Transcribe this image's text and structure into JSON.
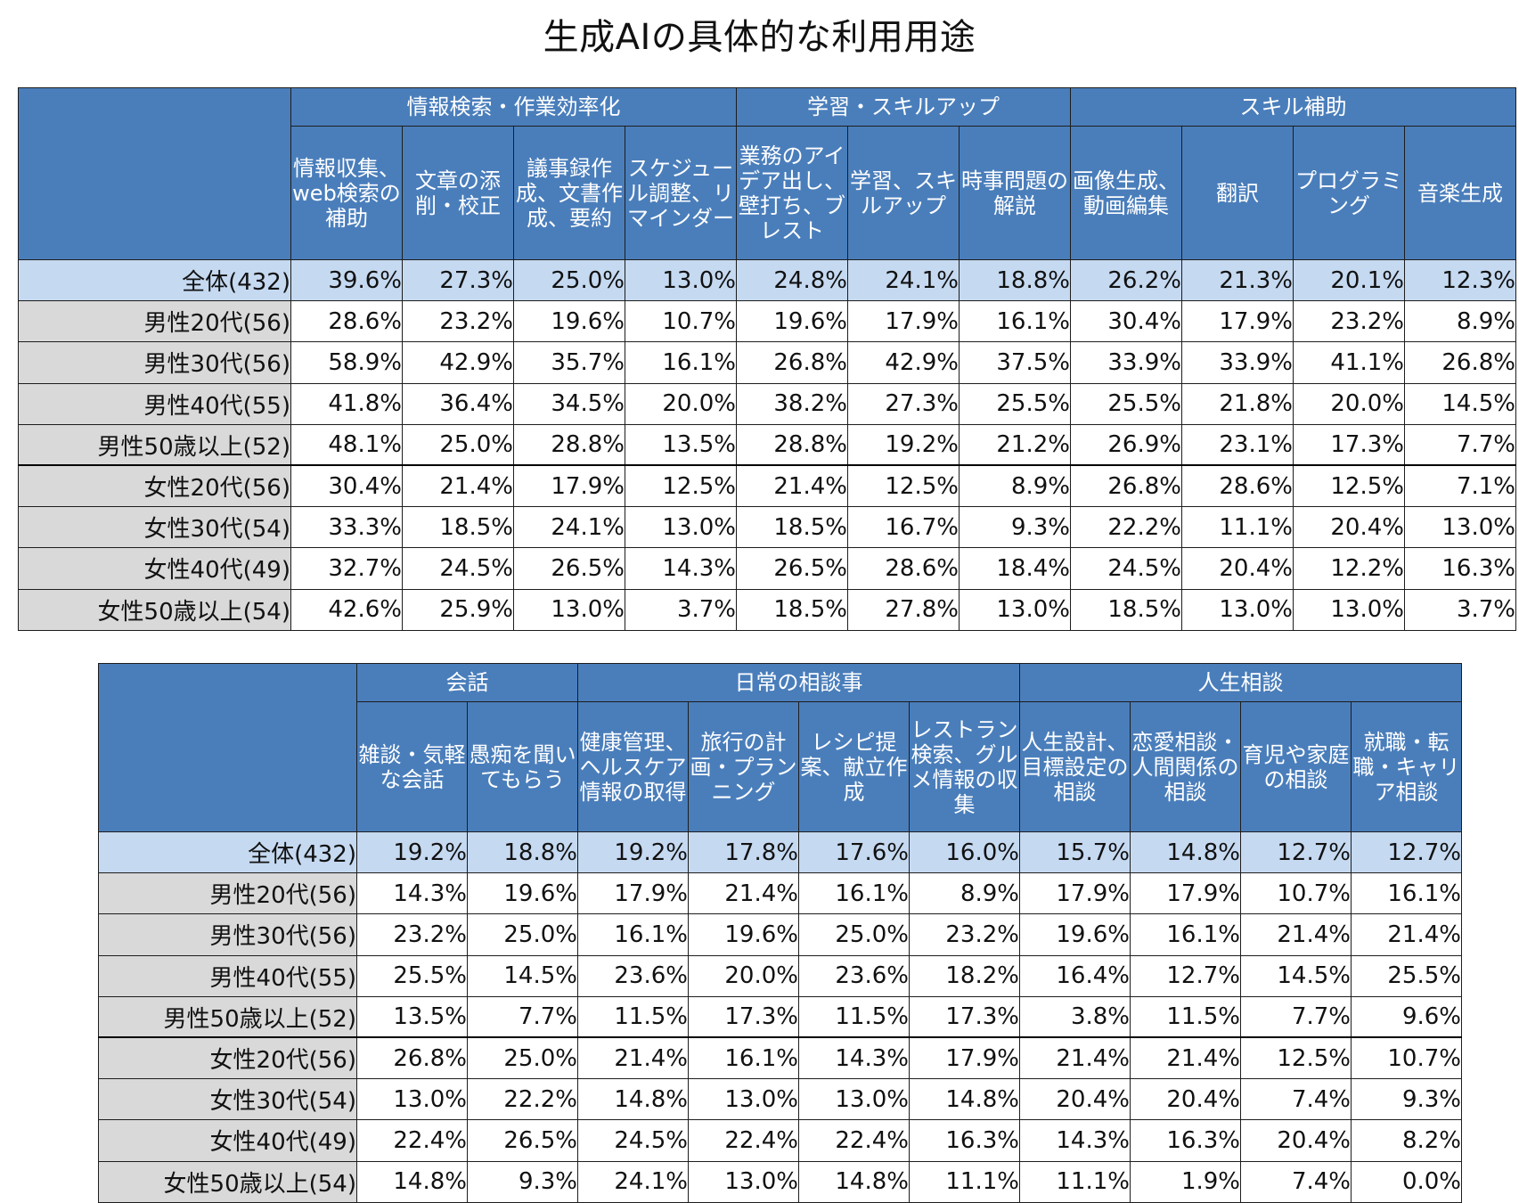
{
  "title": "生成AIの具体的な利用用途",
  "chart_data": [
    {
      "type": "table",
      "groups": [
        {
          "label": "情報検索・作業効率化",
          "span": 4
        },
        {
          "label": "学習・スキルアップ",
          "span": 3
        },
        {
          "label": "スキル補助",
          "span": 4
        }
      ],
      "columns": [
        "情報収集、web検索の補助",
        "文章の添削・校正",
        "議事録作成、文書作成、要約",
        "スケジュール調整、リマインダー",
        "業務のアイデア出し、壁打ち、ブレスト",
        "学習、スキルアップ",
        "時事問題の解説",
        "画像生成、動画編集",
        "翻訳",
        "プログラミング",
        "音楽生成"
      ],
      "rows": [
        {
          "label": "全体(432)",
          "values": [
            "39.6%",
            "27.3%",
            "25.0%",
            "13.0%",
            "24.8%",
            "24.1%",
            "18.8%",
            "26.2%",
            "21.3%",
            "20.1%",
            "12.3%"
          ]
        },
        {
          "label": "男性20代(56)",
          "values": [
            "28.6%",
            "23.2%",
            "19.6%",
            "10.7%",
            "19.6%",
            "17.9%",
            "16.1%",
            "30.4%",
            "17.9%",
            "23.2%",
            "8.9%"
          ]
        },
        {
          "label": "男性30代(56)",
          "values": [
            "58.9%",
            "42.9%",
            "35.7%",
            "16.1%",
            "26.8%",
            "42.9%",
            "37.5%",
            "33.9%",
            "33.9%",
            "41.1%",
            "26.8%"
          ]
        },
        {
          "label": "男性40代(55)",
          "values": [
            "41.8%",
            "36.4%",
            "34.5%",
            "20.0%",
            "38.2%",
            "27.3%",
            "25.5%",
            "25.5%",
            "21.8%",
            "20.0%",
            "14.5%"
          ]
        },
        {
          "label": "男性50歳以上(52)",
          "values": [
            "48.1%",
            "25.0%",
            "28.8%",
            "13.5%",
            "28.8%",
            "19.2%",
            "21.2%",
            "26.9%",
            "23.1%",
            "17.3%",
            "7.7%"
          ]
        },
        {
          "label": "女性20代(56)",
          "values": [
            "30.4%",
            "21.4%",
            "17.9%",
            "12.5%",
            "21.4%",
            "12.5%",
            "8.9%",
            "26.8%",
            "28.6%",
            "12.5%",
            "7.1%"
          ]
        },
        {
          "label": "女性30代(54)",
          "values": [
            "33.3%",
            "18.5%",
            "24.1%",
            "13.0%",
            "18.5%",
            "16.7%",
            "9.3%",
            "22.2%",
            "11.1%",
            "20.4%",
            "13.0%"
          ]
        },
        {
          "label": "女性40代(49)",
          "values": [
            "32.7%",
            "24.5%",
            "26.5%",
            "14.3%",
            "26.5%",
            "28.6%",
            "18.4%",
            "24.5%",
            "20.4%",
            "12.2%",
            "16.3%"
          ]
        },
        {
          "label": "女性50歳以上(54)",
          "values": [
            "42.6%",
            "25.9%",
            "13.0%",
            "3.7%",
            "18.5%",
            "27.8%",
            "13.0%",
            "18.5%",
            "13.0%",
            "13.0%",
            "3.7%"
          ]
        }
      ]
    },
    {
      "type": "table",
      "groups": [
        {
          "label": "会話",
          "span": 2
        },
        {
          "label": "日常の相談事",
          "span": 4
        },
        {
          "label": "人生相談",
          "span": 4
        }
      ],
      "columns": [
        "雑談・気軽な会話",
        "愚痴を聞いてもらう",
        "健康管理、ヘルスケア情報の取得",
        "旅行の計画・プランニング",
        "レシピ提案、献立作成",
        "レストラン検索、グルメ情報の収集",
        "人生設計、目標設定の相談",
        "恋愛相談・人間関係の相談",
        "育児や家庭の相談",
        "就職・転職・キャリア相談"
      ],
      "rows": [
        {
          "label": "全体(432)",
          "values": [
            "19.2%",
            "18.8%",
            "19.2%",
            "17.8%",
            "17.6%",
            "16.0%",
            "15.7%",
            "14.8%",
            "12.7%",
            "12.7%"
          ]
        },
        {
          "label": "男性20代(56)",
          "values": [
            "14.3%",
            "19.6%",
            "17.9%",
            "21.4%",
            "16.1%",
            "8.9%",
            "17.9%",
            "17.9%",
            "10.7%",
            "16.1%"
          ]
        },
        {
          "label": "男性30代(56)",
          "values": [
            "23.2%",
            "25.0%",
            "16.1%",
            "19.6%",
            "25.0%",
            "23.2%",
            "19.6%",
            "16.1%",
            "21.4%",
            "21.4%"
          ]
        },
        {
          "label": "男性40代(55)",
          "values": [
            "25.5%",
            "14.5%",
            "23.6%",
            "20.0%",
            "23.6%",
            "18.2%",
            "16.4%",
            "12.7%",
            "14.5%",
            "25.5%"
          ]
        },
        {
          "label": "男性50歳以上(52)",
          "values": [
            "13.5%",
            "7.7%",
            "11.5%",
            "17.3%",
            "11.5%",
            "17.3%",
            "3.8%",
            "11.5%",
            "7.7%",
            "9.6%"
          ]
        },
        {
          "label": "女性20代(56)",
          "values": [
            "26.8%",
            "25.0%",
            "21.4%",
            "16.1%",
            "14.3%",
            "17.9%",
            "21.4%",
            "21.4%",
            "12.5%",
            "10.7%"
          ]
        },
        {
          "label": "女性30代(54)",
          "values": [
            "13.0%",
            "22.2%",
            "14.8%",
            "13.0%",
            "13.0%",
            "14.8%",
            "20.4%",
            "20.4%",
            "7.4%",
            "9.3%"
          ]
        },
        {
          "label": "女性40代(49)",
          "values": [
            "22.4%",
            "26.5%",
            "24.5%",
            "22.4%",
            "22.4%",
            "16.3%",
            "14.3%",
            "16.3%",
            "20.4%",
            "8.2%"
          ]
        },
        {
          "label": "女性50歳以上(54)",
          "values": [
            "14.8%",
            "9.3%",
            "24.1%",
            "13.0%",
            "14.8%",
            "11.1%",
            "11.1%",
            "1.9%",
            "7.4%",
            "0.0%"
          ]
        }
      ]
    }
  ]
}
